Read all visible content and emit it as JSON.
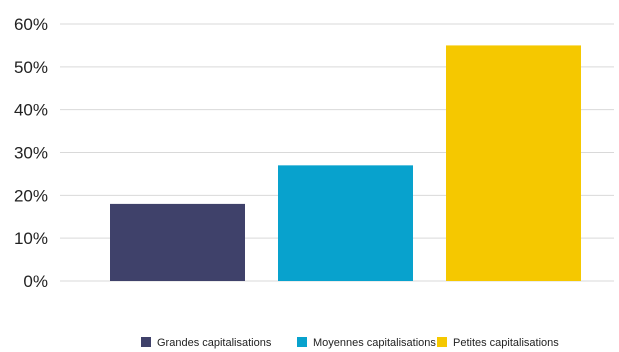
{
  "chart_data": {
    "type": "bar",
    "categories": [
      "Grandes capitalisations",
      "Moyennes capitalisations",
      "Petites capitalisations"
    ],
    "series": [
      {
        "name": "",
        "values": [
          0.18,
          0.27,
          0.55
        ]
      }
    ],
    "colors": [
      "#3f416a",
      "#08a2cd",
      "#f5c800"
    ],
    "ylim": [
      0,
      0.6
    ],
    "yticks": [
      0,
      0.1,
      0.2,
      0.3,
      0.4,
      0.5,
      0.6
    ],
    "ytick_labels": [
      "0%",
      "10%",
      "20%",
      "30%",
      "40%",
      "50%",
      "60%"
    ],
    "grid": true,
    "legend_position": "bottom",
    "title": "",
    "xlabel": "",
    "ylabel": ""
  }
}
